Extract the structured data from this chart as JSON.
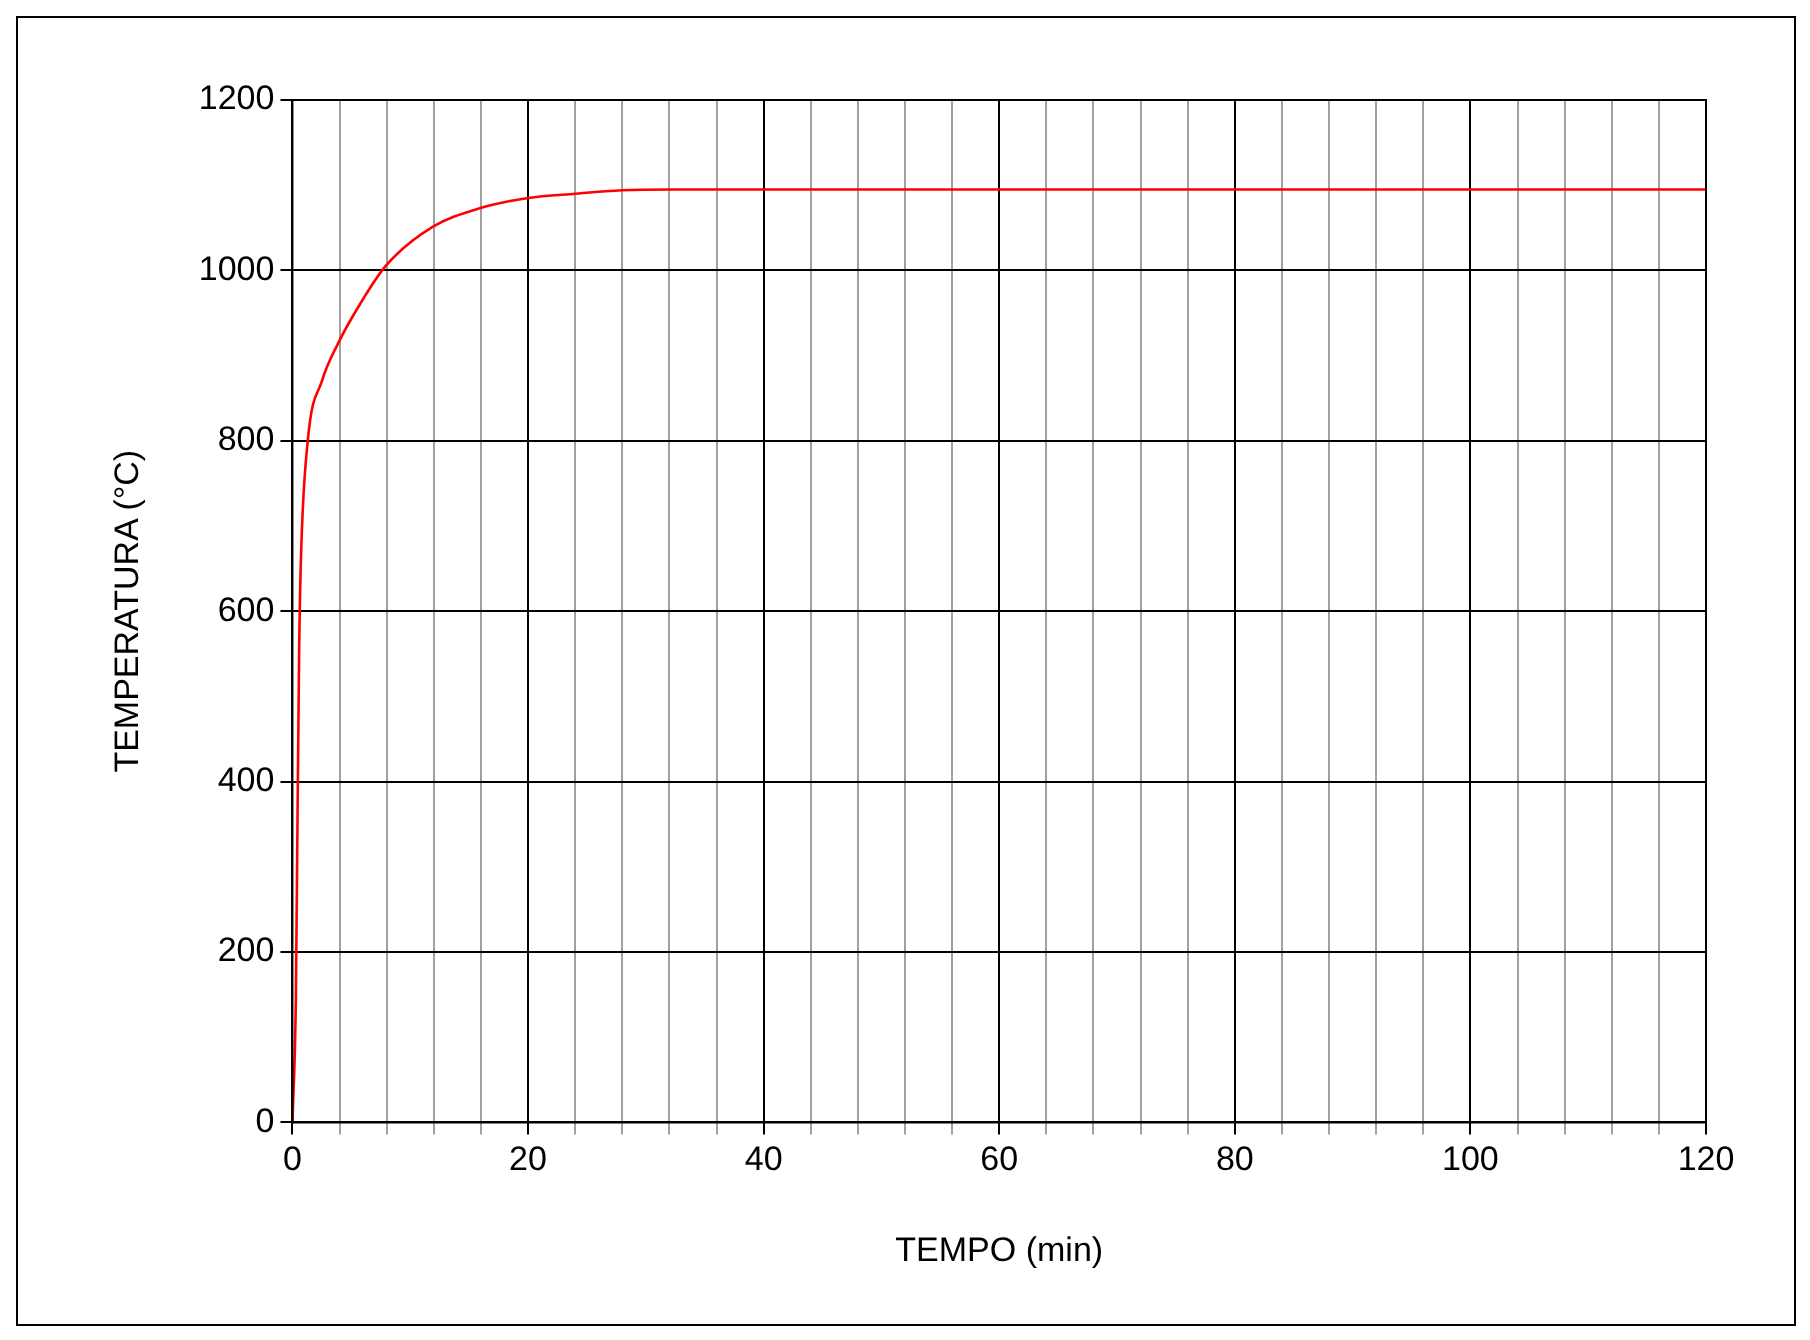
{
  "chart_data": {
    "type": "line",
    "xlabel": "TEMPO (min)",
    "ylabel": "TEMPERATURA (°C)",
    "x": [
      0,
      0.29,
      0.4,
      0.57,
      0.74,
      1.3,
      2.5,
      3.9,
      5.5,
      7.9,
      11.9,
      15.9,
      20,
      24,
      28,
      32,
      40,
      60,
      80,
      100,
      120
    ],
    "series": [
      {
        "color": "#ff0000",
        "values": [
          0,
          145,
          309,
          555,
          670,
          800,
          870,
          915,
          955,
          1005,
          1051,
          1073,
          1085,
          1090,
          1094,
          1095,
          1095,
          1095,
          1095,
          1095,
          1095
        ]
      }
    ],
    "xlim": [
      0,
      120
    ],
    "xticks": [
      0,
      {
        "value": 4,
        "label": null
      },
      {
        "value": 8,
        "label": null
      },
      {
        "value": 12,
        "label": null
      },
      {
        "value": 16,
        "label": null
      },
      20,
      {
        "value": 24,
        "label": null
      },
      {
        "value": 28,
        "label": null
      },
      {
        "value": 32,
        "label": null
      },
      {
        "value": 36,
        "label": null
      },
      40,
      {
        "value": 44,
        "label": null
      },
      {
        "value": 48,
        "label": null
      },
      {
        "value": 52,
        "label": null
      },
      {
        "value": 56,
        "label": null
      },
      60,
      {
        "value": 64,
        "label": null
      },
      {
        "value": 68,
        "label": null
      },
      {
        "value": 72,
        "label": null
      },
      {
        "value": 76,
        "label": null
      },
      80,
      {
        "value": 84,
        "label": null
      },
      {
        "value": 88,
        "label": null
      },
      {
        "value": 92,
        "label": null
      },
      {
        "value": 96,
        "label": null
      },
      100,
      {
        "value": 104,
        "label": null
      },
      {
        "value": 108,
        "label": null
      },
      {
        "value": 112,
        "label": null
      },
      {
        "value": 116,
        "label": null
      },
      120
    ],
    "ylim": [
      0,
      1200
    ],
    "yticks": [
      0,
      200,
      400,
      600,
      800,
      1000,
      1200
    ],
    "grid": true,
    "legend": false,
    "marker": "none",
    "line_style": "solid"
  }
}
